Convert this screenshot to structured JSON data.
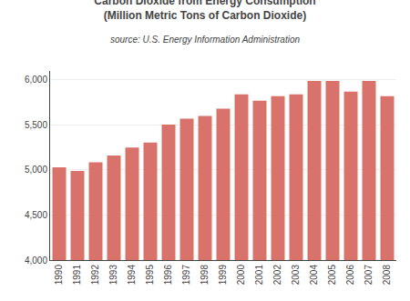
{
  "chart_data": {
    "type": "bar",
    "title": "Carbon Dioxide from Energy Consumption\n(Million Metric Tons of Carbon Dioxide)",
    "subtitle": "source: U.S. Energy Information Administration",
    "categories": [
      "1990",
      "1991",
      "1992",
      "1993",
      "1994",
      "1995",
      "1996",
      "1997",
      "1998",
      "1999",
      "2000",
      "2001",
      "2002",
      "2003",
      "2004",
      "2005",
      "2006",
      "2007",
      "2008"
    ],
    "values": [
      5030,
      4990,
      5085,
      5160,
      5250,
      5305,
      5505,
      5570,
      5600,
      5680,
      5840,
      5770,
      5820,
      5840,
      5990,
      5990,
      5870,
      5990,
      5820
    ],
    "color": "#d9726a",
    "ylim": [
      4000,
      6100
    ],
    "yticks": [
      {
        "value": 4000,
        "label": "4,000"
      },
      {
        "value": 4500,
        "label": "4,500"
      },
      {
        "value": 5000,
        "label": "5,000"
      },
      {
        "value": 5500,
        "label": "5,500"
      },
      {
        "value": 6000,
        "label": "6,000"
      }
    ],
    "grid": true
  }
}
